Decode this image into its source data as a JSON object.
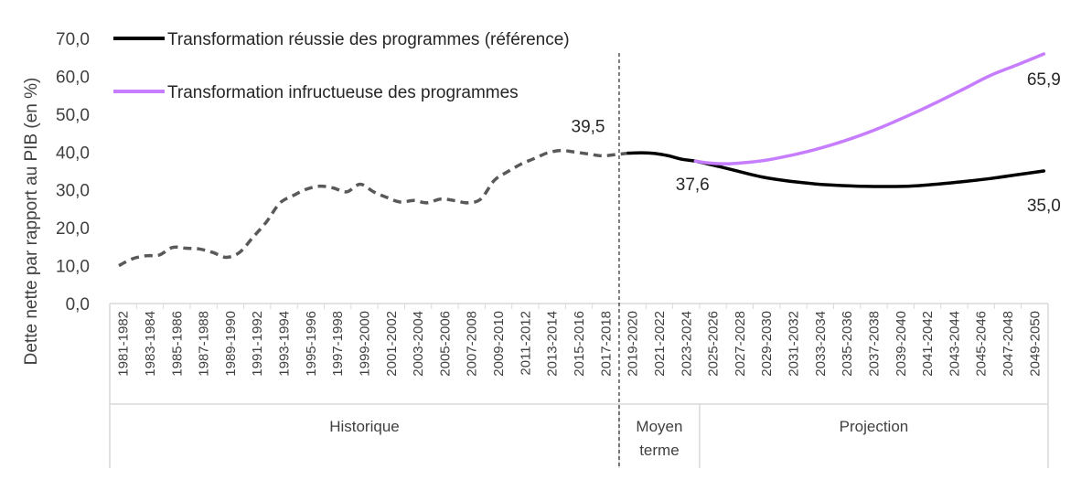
{
  "chart_data": {
    "type": "line",
    "ylabel": "Dette nette par rapport au PIB (en %)",
    "ylim": [
      0,
      70
    ],
    "yticks": [
      "0,0",
      "10,0",
      "20,0",
      "30,0",
      "40,0",
      "50,0",
      "60,0",
      "70,0"
    ],
    "categories": [
      "1981-1982",
      "1983-1984",
      "1985-1986",
      "1987-1988",
      "1989-1990",
      "1991-1992",
      "1993-1994",
      "1995-1996",
      "1997-1998",
      "1999-2000",
      "2001-2002",
      "2003-2004",
      "2005-2006",
      "2007-2008",
      "2009-2010",
      "2011-2012",
      "2013-2014",
      "2015-2016",
      "2017-2018",
      "2019-2020",
      "2021-2022",
      "2023-2024",
      "2025-2026",
      "2027-2028",
      "2029-2030",
      "2031-2032",
      "2033-2034",
      "2035-2036",
      "2037-2038",
      "2039-2040",
      "2041-2042",
      "2043-2044",
      "2045-2046",
      "2047-2048",
      "2049-2050"
    ],
    "groups": [
      {
        "label": "Historique",
        "from": "1981-1982",
        "to": "2017-2018"
      },
      {
        "label": "Moyen terme",
        "from": "2019-2020",
        "to": "2023-2024"
      },
      {
        "label": "Projection",
        "from": "2025-2026",
        "to": "2049-2050"
      }
    ],
    "historical": {
      "x": [
        1981,
        1982,
        1983,
        1984,
        1985,
        1986,
        1987,
        1988,
        1989,
        1990,
        1991,
        1992,
        1993,
        1994,
        1995,
        1996,
        1997,
        1998,
        1999,
        2000,
        2001,
        2002,
        2003,
        2004,
        2005,
        2006,
        2007,
        2008,
        2009,
        2010,
        2011,
        2012,
        2013,
        2014,
        2015,
        2016,
        2017,
        2018,
        2019
      ],
      "y": [
        10.0,
        11.8,
        12.6,
        12.8,
        14.8,
        14.6,
        14.4,
        13.5,
        12.2,
        13.5,
        17.5,
        21.5,
        26.5,
        28.5,
        30.2,
        31.0,
        30.5,
        29.5,
        31.5,
        29.5,
        28.0,
        26.8,
        27.2,
        26.6,
        27.6,
        27.2,
        26.6,
        27.6,
        32.5,
        34.8,
        36.8,
        38.3,
        39.8,
        40.4,
        40.0,
        39.5,
        39.0,
        39.3,
        39.7
      ]
    },
    "series": [
      {
        "name": "Transformation réussie des programmes (référence)",
        "color": "#000000",
        "x": [
          2019,
          2020,
          2021,
          2022,
          2023,
          2024,
          2025,
          2026,
          2027,
          2028,
          2029,
          2030,
          2032,
          2034,
          2036,
          2038,
          2040,
          2042,
          2044,
          2046,
          2048,
          2050
        ],
        "y": [
          39.7,
          39.8,
          39.6,
          39.0,
          38.1,
          37.6,
          36.8,
          36.0,
          35.1,
          34.2,
          33.4,
          32.8,
          31.9,
          31.3,
          31.0,
          30.9,
          31.0,
          31.5,
          32.2,
          33.0,
          34.0,
          35.0
        ]
      },
      {
        "name": "Transformation infructueuse des programmes",
        "color": "#c77dff",
        "x": [
          2024,
          2025,
          2026,
          2027,
          2028,
          2029,
          2030,
          2032,
          2034,
          2036,
          2038,
          2040,
          2042,
          2044,
          2046,
          2048,
          2050
        ],
        "y": [
          37.6,
          37.1,
          36.9,
          37.0,
          37.3,
          37.7,
          38.3,
          39.8,
          41.7,
          44.0,
          46.7,
          49.8,
          53.1,
          56.6,
          60.2,
          63.0,
          65.9
        ]
      }
    ],
    "annotations": [
      {
        "text": "39,5",
        "x": 2016,
        "y": 39.5
      },
      {
        "text": "37,6",
        "x": 2024,
        "y": 37.6
      },
      {
        "text": "65,9",
        "x": 2050,
        "y": 65.9
      },
      {
        "text": "35,0",
        "x": 2050,
        "y": 35.0
      }
    ],
    "legend_position": "top-left"
  }
}
